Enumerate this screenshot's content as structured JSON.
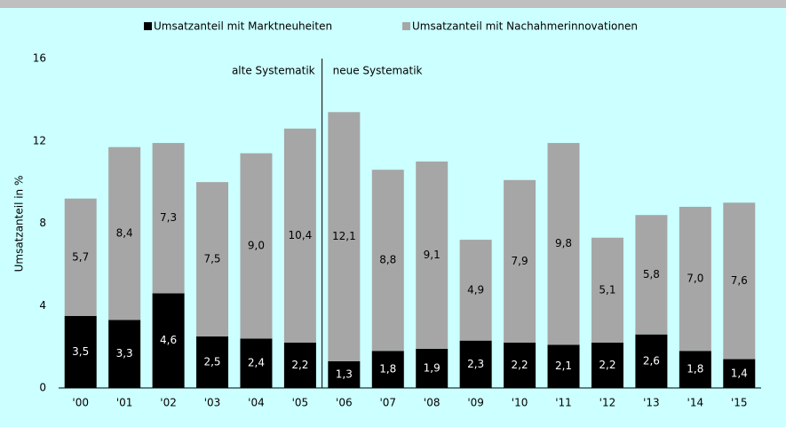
{
  "chart_data": {
    "type": "bar",
    "stacked": true,
    "categories": [
      "'00",
      "'01",
      "'02",
      "'03",
      "'04",
      "'05",
      "'06",
      "'07",
      "'08",
      "'09",
      "'10",
      "'11",
      "'12",
      "'13",
      "'14",
      "'15"
    ],
    "series": [
      {
        "name": "Umsatzanteil mit Marktneuheiten",
        "color": "#000000",
        "values": [
          3.5,
          3.3,
          4.6,
          2.5,
          2.4,
          2.2,
          1.3,
          1.8,
          1.9,
          2.3,
          2.2,
          2.1,
          2.2,
          2.6,
          1.8,
          1.4
        ],
        "value_labels": [
          "3,5",
          "3,3",
          "4,6",
          "2,5",
          "2,4",
          "2,2",
          "1,3",
          "1,8",
          "1,9",
          "2,3",
          "2,2",
          "2,1",
          "2,2",
          "2,6",
          "1,8",
          "1,4"
        ]
      },
      {
        "name": "Umsatzanteil mit Nachahmerinnovationen",
        "color": "#a6a6a6",
        "values": [
          5.7,
          8.4,
          7.3,
          7.5,
          9.0,
          10.4,
          12.1,
          8.8,
          9.1,
          4.9,
          7.9,
          9.8,
          5.1,
          5.8,
          7.0,
          7.6
        ],
        "value_labels": [
          "5,7",
          "8,4",
          "7,3",
          "7,5",
          "9,0",
          "10,4",
          "12,1",
          "8,8",
          "9,1",
          "4,9",
          "7,9",
          "9,8",
          "5,1",
          "5,8",
          "7,0",
          "7,6"
        ]
      }
    ],
    "ylabel": "Umsatzanteil in %",
    "ylim": [
      0,
      16
    ],
    "yticks": [
      0,
      4,
      8,
      12,
      16
    ],
    "annotations": [
      "alte Systematik",
      "neue Systematik"
    ],
    "legend": "top"
  }
}
